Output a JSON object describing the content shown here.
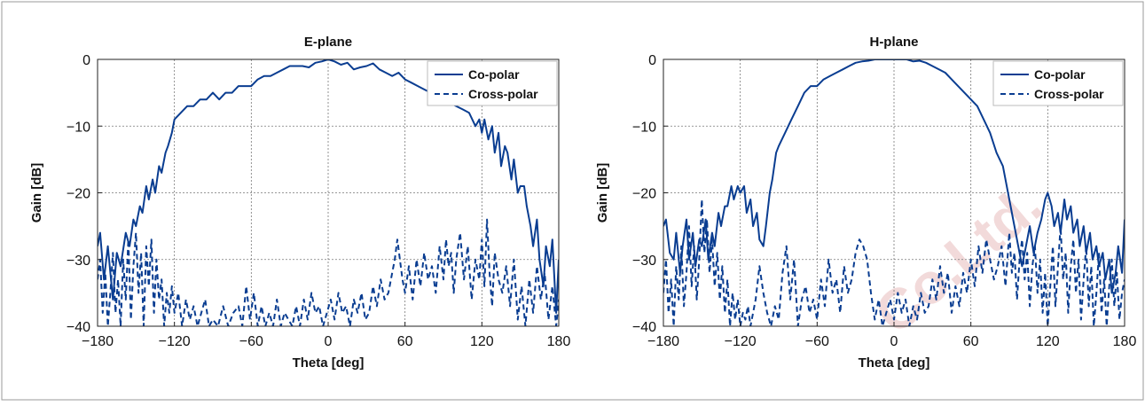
{
  "watermark": "Co.Ltd.",
  "colors": {
    "series": "#0a3d91",
    "grid": "#777777",
    "frame": "#222222"
  },
  "chart_data": [
    {
      "type": "line",
      "title": "E-plane",
      "xlabel": "Theta [deg]",
      "ylabel": "Gain [dB]",
      "xlim": [
        -180,
        180
      ],
      "ylim": [
        -40,
        0
      ],
      "xticks": [
        -180,
        -120,
        -60,
        0,
        60,
        120,
        180
      ],
      "xtick_labels": [
        "−180",
        "−120",
        "−60",
        "0",
        "60",
        "120",
        "180"
      ],
      "yticks": [
        0,
        -10,
        -20,
        -30,
        -40
      ],
      "ytick_labels": [
        "0",
        "−10",
        "−20",
        "−30",
        "−40"
      ],
      "grid": true,
      "legend_position": "top-right",
      "series": [
        {
          "name": "Co-polar",
          "style": "solid",
          "x": [
            -180,
            -178,
            -175,
            -172,
            -168,
            -165,
            -162,
            -158,
            -155,
            -152,
            -150,
            -147,
            -145,
            -142,
            -140,
            -137,
            -135,
            -132,
            -130,
            -127,
            -125,
            -122,
            -120,
            -115,
            -110,
            -105,
            -100,
            -95,
            -90,
            -85,
            -80,
            -75,
            -70,
            -65,
            -60,
            -55,
            -50,
            -45,
            -40,
            -35,
            -30,
            -25,
            -20,
            -15,
            -10,
            -5,
            0,
            5,
            10,
            15,
            20,
            25,
            30,
            35,
            40,
            45,
            50,
            55,
            60,
            65,
            70,
            75,
            80,
            85,
            90,
            95,
            100,
            105,
            110,
            115,
            118,
            120,
            122,
            125,
            128,
            130,
            133,
            135,
            138,
            140,
            143,
            145,
            148,
            150,
            153,
            155,
            158,
            160,
            163,
            165,
            168,
            170,
            173,
            175,
            178,
            180
          ],
          "y": [
            -28,
            -26,
            -33,
            -28,
            -36,
            -29,
            -31,
            -26,
            -28,
            -24,
            -25,
            -22,
            -23,
            -19,
            -21,
            -18,
            -20,
            -16,
            -17,
            -14,
            -13,
            -11,
            -9,
            -8,
            -7,
            -7,
            -6,
            -6,
            -5,
            -6,
            -5,
            -5,
            -4,
            -4,
            -4,
            -3,
            -2.5,
            -2.5,
            -2,
            -1.5,
            -1,
            -1,
            -1,
            -1.2,
            -0.5,
            -0.3,
            0,
            -0.3,
            -0.8,
            -0.5,
            -1.5,
            -1.2,
            -1,
            -0.6,
            -1.5,
            -2,
            -2.5,
            -2,
            -3,
            -3.5,
            -4,
            -4.5,
            -5,
            -5.5,
            -6,
            -6.5,
            -7,
            -7.5,
            -8,
            -10,
            -9,
            -11,
            -9,
            -12,
            -10,
            -14,
            -11,
            -16,
            -13,
            -14,
            -18,
            -15,
            -20,
            -19,
            -19,
            -22,
            -25,
            -28,
            -24,
            -30,
            -34,
            -28,
            -31,
            -27,
            -38,
            -30
          ]
        },
        {
          "name": "Cross-polar",
          "style": "dashed",
          "x": [
            -180,
            -178,
            -176,
            -174,
            -172,
            -170,
            -168,
            -166,
            -164,
            -162,
            -160,
            -158,
            -156,
            -154,
            -152,
            -150,
            -148,
            -146,
            -144,
            -142,
            -140,
            -138,
            -136,
            -134,
            -132,
            -130,
            -128,
            -126,
            -124,
            -122,
            -120,
            -117,
            -114,
            -111,
            -108,
            -105,
            -102,
            -99,
            -96,
            -93,
            -90,
            -86,
            -82,
            -78,
            -74,
            -70,
            -67,
            -64,
            -61,
            -58,
            -55,
            -52,
            -49,
            -46,
            -43,
            -40,
            -37,
            -34,
            -31,
            -28,
            -25,
            -22,
            -19,
            -16,
            -13,
            -10,
            -7,
            -4,
            -1,
            2,
            5,
            8,
            11,
            14,
            17,
            20,
            23,
            26,
            29,
            32,
            35,
            38,
            41,
            44,
            47,
            50,
            52,
            54,
            56,
            58,
            60,
            63,
            66,
            69,
            72,
            75,
            78,
            81,
            84,
            87,
            90,
            92,
            94,
            96,
            98,
            100,
            103,
            106,
            109,
            112,
            115,
            118,
            120,
            122,
            124,
            126,
            128,
            130,
            133,
            136,
            139,
            142,
            145,
            148,
            151,
            154,
            157,
            160,
            163,
            166,
            169,
            172,
            175,
            178,
            180
          ],
          "y": [
            -33,
            -30,
            -38,
            -32,
            -40,
            -35,
            -29,
            -38,
            -33,
            -40,
            -30,
            -36,
            -27,
            -39,
            -31,
            -26,
            -35,
            -29,
            -40,
            -28,
            -34,
            -27,
            -38,
            -30,
            -36,
            -33,
            -40,
            -35,
            -38,
            -34,
            -38,
            -35,
            -40,
            -36,
            -39,
            -37,
            -40,
            -38,
            -36,
            -40,
            -39,
            -40,
            -37,
            -40,
            -38,
            -37,
            -40,
            -34,
            -39,
            -35,
            -40,
            -37,
            -40,
            -38,
            -40,
            -36,
            -40,
            -38,
            -39,
            -40,
            -37,
            -40,
            -36,
            -39,
            -35,
            -38,
            -37,
            -40,
            -38,
            -36,
            -39,
            -35,
            -38,
            -37,
            -40,
            -36,
            -38,
            -35,
            -39,
            -38,
            -34,
            -37,
            -33,
            -36,
            -35,
            -32,
            -30,
            -27,
            -30,
            -33,
            -35,
            -31,
            -36,
            -30,
            -34,
            -29,
            -33,
            -31,
            -35,
            -28,
            -33,
            -27,
            -31,
            -29,
            -35,
            -30,
            -26,
            -33,
            -28,
            -36,
            -30,
            -33,
            -27,
            -34,
            -24,
            -32,
            -37,
            -29,
            -33,
            -35,
            -31,
            -37,
            -30,
            -39,
            -34,
            -40,
            -33,
            -38,
            -31,
            -36,
            -32,
            -39,
            -34,
            -40,
            -36
          ]
        }
      ]
    },
    {
      "type": "line",
      "title": "H-plane",
      "xlabel": "Theta [deg]",
      "ylabel": "Gain [dB]",
      "xlim": [
        -180,
        180
      ],
      "ylim": [
        -40,
        0
      ],
      "xticks": [
        -180,
        -120,
        -60,
        0,
        60,
        120,
        180
      ],
      "xtick_labels": [
        "−180",
        "−120",
        "−60",
        "0",
        "60",
        "120",
        "180"
      ],
      "yticks": [
        0,
        -10,
        -20,
        -30,
        -40
      ],
      "ytick_labels": [
        "0",
        "−10",
        "−20",
        "−30",
        "−40"
      ],
      "grid": true,
      "legend_position": "top-right",
      "series": [
        {
          "name": "Co-polar",
          "style": "solid",
          "x": [
            -180,
            -178,
            -175,
            -172,
            -170,
            -167,
            -165,
            -162,
            -160,
            -157,
            -155,
            -152,
            -150,
            -147,
            -145,
            -142,
            -140,
            -137,
            -135,
            -132,
            -130,
            -127,
            -125,
            -122,
            -120,
            -117,
            -115,
            -112,
            -110,
            -107,
            -105,
            -102,
            -100,
            -97,
            -95,
            -92,
            -90,
            -85,
            -80,
            -75,
            -70,
            -65,
            -60,
            -55,
            -50,
            -45,
            -40,
            -35,
            -30,
            -25,
            -20,
            -15,
            -10,
            -5,
            0,
            5,
            10,
            15,
            20,
            25,
            30,
            35,
            40,
            45,
            50,
            55,
            60,
            65,
            70,
            75,
            80,
            85,
            90,
            95,
            100,
            103,
            106,
            109,
            112,
            115,
            118,
            120,
            123,
            125,
            128,
            130,
            133,
            135,
            138,
            140,
            143,
            145,
            148,
            150,
            153,
            155,
            158,
            160,
            163,
            165,
            168,
            170,
            173,
            175,
            178,
            180
          ],
          "y": [
            -25,
            -24,
            -29,
            -30,
            -26,
            -32,
            -28,
            -24,
            -30,
            -26,
            -31,
            -27,
            -28,
            -24,
            -30,
            -26,
            -28,
            -23,
            -25,
            -22,
            -22,
            -19,
            -21,
            -19,
            -20,
            -19,
            -23,
            -21,
            -25,
            -23,
            -27,
            -28,
            -25,
            -20,
            -18,
            -14,
            -13,
            -11,
            -9,
            -7,
            -5,
            -4,
            -4,
            -3,
            -2.5,
            -2,
            -1.5,
            -1,
            -0.5,
            -0.3,
            -0.2,
            0,
            0,
            0,
            0,
            0,
            0,
            -0.3,
            -0.2,
            -0.5,
            -1,
            -1.5,
            -2,
            -3,
            -4,
            -5,
            -6,
            -7,
            -9,
            -11,
            -14,
            -16,
            -21,
            -26,
            -31,
            -28,
            -25,
            -29,
            -26,
            -24,
            -21,
            -20,
            -22,
            -25,
            -23,
            -26,
            -21,
            -24,
            -22,
            -26,
            -24,
            -28,
            -25,
            -29,
            -26,
            -30,
            -28,
            -31,
            -29,
            -33,
            -30,
            -35,
            -32,
            -28,
            -32,
            -24
          ]
        },
        {
          "name": "Cross-polar",
          "style": "dashed",
          "x": [
            -180,
            -178,
            -176,
            -174,
            -172,
            -170,
            -168,
            -166,
            -164,
            -162,
            -160,
            -158,
            -156,
            -154,
            -152,
            -150,
            -148,
            -146,
            -144,
            -142,
            -140,
            -138,
            -136,
            -134,
            -132,
            -130,
            -128,
            -126,
            -124,
            -122,
            -120,
            -118,
            -116,
            -114,
            -112,
            -110,
            -108,
            -105,
            -102,
            -99,
            -96,
            -93,
            -90,
            -87,
            -84,
            -81,
            -78,
            -75,
            -72,
            -69,
            -66,
            -63,
            -60,
            -57,
            -54,
            -51,
            -48,
            -45,
            -42,
            -39,
            -36,
            -33,
            -30,
            -27,
            -24,
            -21,
            -18,
            -15,
            -12,
            -9,
            -6,
            -3,
            0,
            3,
            6,
            9,
            12,
            15,
            18,
            21,
            24,
            27,
            30,
            33,
            36,
            39,
            42,
            45,
            48,
            51,
            54,
            57,
            60,
            63,
            66,
            69,
            72,
            75,
            78,
            81,
            84,
            87,
            90,
            92,
            94,
            96,
            98,
            100,
            102,
            104,
            106,
            108,
            110,
            112,
            114,
            116,
            118,
            120,
            122,
            124,
            126,
            128,
            130,
            132,
            134,
            136,
            138,
            140,
            142,
            144,
            146,
            148,
            150,
            152,
            154,
            156,
            158,
            160,
            162,
            164,
            166,
            168,
            170,
            172,
            174,
            176,
            178,
            180
          ],
          "y": [
            -35,
            -30,
            -38,
            -33,
            -40,
            -31,
            -36,
            -28,
            -37,
            -32,
            -25,
            -34,
            -28,
            -36,
            -30,
            -21,
            -29,
            -24,
            -32,
            -27,
            -34,
            -29,
            -36,
            -31,
            -38,
            -33,
            -40,
            -35,
            -39,
            -36,
            -40,
            -38,
            -39,
            -37,
            -40,
            -38,
            -36,
            -31,
            -35,
            -38,
            -40,
            -37,
            -39,
            -32,
            -28,
            -36,
            -30,
            -40,
            -36,
            -34,
            -38,
            -36,
            -39,
            -33,
            -37,
            -30,
            -35,
            -33,
            -38,
            -31,
            -35,
            -33,
            -29,
            -27,
            -28,
            -30,
            -35,
            -39,
            -36,
            -40,
            -38,
            -36,
            -39,
            -35,
            -38,
            -36,
            -40,
            -37,
            -39,
            -35,
            -38,
            -37,
            -33,
            -36,
            -31,
            -35,
            -32,
            -38,
            -34,
            -37,
            -32,
            -35,
            -30,
            -34,
            -28,
            -32,
            -27,
            -30,
            -33,
            -31,
            -28,
            -34,
            -26,
            -32,
            -29,
            -36,
            -30,
            -27,
            -33,
            -29,
            -37,
            -31,
            -28,
            -35,
            -30,
            -38,
            -32,
            -40,
            -34,
            -28,
            -37,
            -31,
            -25,
            -33,
            -29,
            -38,
            -31,
            -27,
            -35,
            -30,
            -39,
            -33,
            -28,
            -37,
            -31,
            -40,
            -35,
            -29,
            -38,
            -33,
            -40,
            -34,
            -30,
            -37,
            -32,
            -39,
            -35,
            -33
          ]
        }
      ]
    }
  ]
}
